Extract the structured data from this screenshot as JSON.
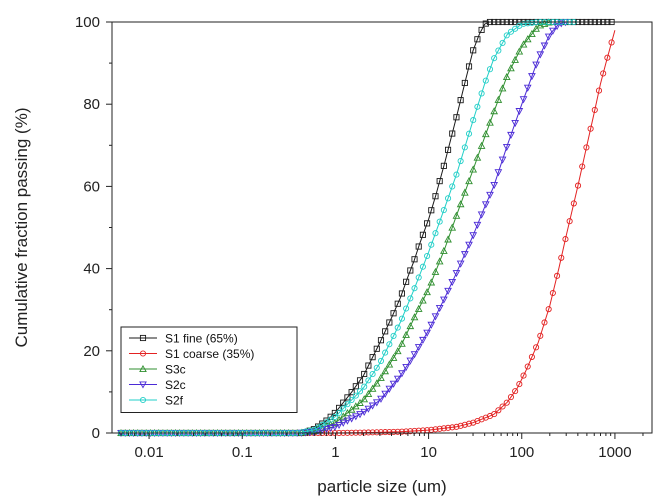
{
  "chart_data": {
    "type": "line",
    "xlabel": "particle size (um)",
    "ylabel": "Cumulative fraction passing (%)",
    "x_scale": "log",
    "xlim": [
      0.004,
      2500
    ],
    "ylim": [
      0,
      100
    ],
    "x_ticks": [
      0.01,
      0.1,
      1,
      10,
      100,
      1000
    ],
    "x_tick_labels": [
      "0.01",
      "0.1",
      "1",
      "10",
      "100",
      "1000"
    ],
    "y_ticks": [
      0,
      20,
      40,
      60,
      80,
      100
    ],
    "y_tick_labels": [
      "0",
      "20",
      "40",
      "60",
      "80",
      "100"
    ],
    "grid": false,
    "legend_position": "bottom-left",
    "series": [
      {
        "name": "S1 fine (65%)",
        "color": "#1a1a1a",
        "marker": "square",
        "x": [
          0.005,
          0.1,
          0.45,
          0.6,
          0.8,
          1,
          1.5,
          2,
          3,
          4,
          5,
          6,
          7,
          8,
          10,
          12,
          15,
          20,
          25,
          30,
          35,
          40,
          45,
          100,
          500,
          1000
        ],
        "y": [
          0,
          0,
          0,
          1,
          3,
          5,
          10,
          14,
          22,
          28,
          33,
          38,
          42,
          46,
          52,
          58,
          66,
          77,
          86,
          93,
          97,
          99.5,
          100,
          100,
          100,
          100
        ]
      },
      {
        "name": "S1 coarse (35%)",
        "color": "#e32222",
        "marker": "circle",
        "x": [
          0.005,
          1,
          2,
          5,
          10,
          20,
          30,
          50,
          70,
          90,
          110,
          150,
          200,
          250,
          300,
          400,
          500,
          600,
          700,
          800,
          1000
        ],
        "y": [
          0,
          0,
          0.1,
          0.3,
          0.7,
          1.5,
          2.5,
          4.5,
          7.5,
          11,
          15,
          22,
          31,
          40,
          48,
          60,
          70,
          78,
          85,
          90,
          98
        ]
      },
      {
        "name": "S3c",
        "color": "#2f8f2f",
        "marker": "triangle-up",
        "x": [
          0.005,
          0.4,
          0.6,
          1,
          2,
          3,
          5,
          7,
          10,
          15,
          20,
          30,
          40,
          50,
          70,
          100,
          150,
          200
        ],
        "y": [
          0,
          0,
          0.5,
          2.5,
          8,
          13,
          21,
          28,
          35,
          45,
          53,
          64,
          72,
          78,
          87,
          94,
          99,
          100
        ]
      },
      {
        "name": "S2c",
        "color": "#4b2bd6",
        "marker": "triangle-down",
        "x": [
          0.005,
          0.4,
          0.6,
          1,
          2,
          3,
          5,
          7,
          10,
          15,
          20,
          30,
          40,
          50,
          70,
          100,
          150,
          200,
          250,
          300
        ],
        "y": [
          0,
          0,
          0.3,
          1.5,
          5,
          8,
          14,
          19,
          25,
          33,
          39,
          48,
          55,
          60,
          70,
          80,
          91,
          97,
          99.5,
          100
        ]
      },
      {
        "name": "S2f",
        "color": "#22cfc8",
        "marker": "circle",
        "x": [
          0.005,
          0.4,
          0.6,
          1,
          2,
          3,
          5,
          7,
          10,
          15,
          20,
          30,
          40,
          50,
          70,
          100,
          150,
          200,
          400
        ],
        "y": [
          0,
          0,
          0.8,
          4,
          11,
          17,
          27,
          35,
          44,
          55,
          63,
          76,
          85,
          91,
          97,
          99.5,
          100,
          100,
          100
        ]
      }
    ]
  }
}
